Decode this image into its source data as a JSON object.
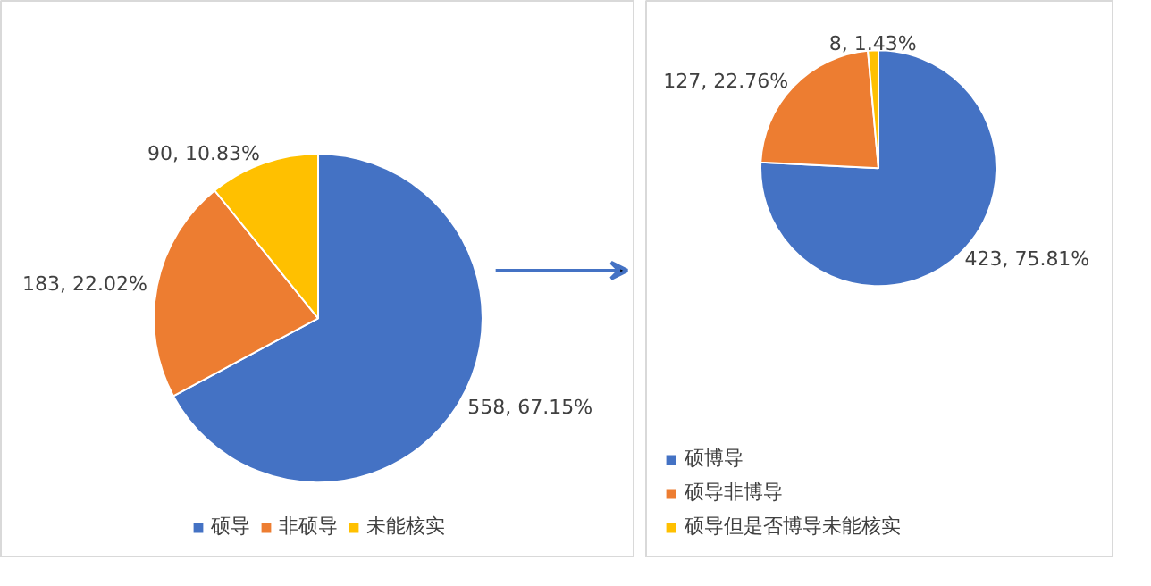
{
  "chart_data": [
    {
      "type": "pie",
      "categories": [
        "硕导",
        "非硕导",
        "未能核实"
      ],
      "values": [
        558,
        183,
        90
      ],
      "colors": [
        "#4472c4",
        "#ed7d31",
        "#ffc000"
      ],
      "value_labels": [
        "558, 67.15%",
        "183, 22.02%",
        "90, 10.83%"
      ],
      "legend": "bottom"
    },
    {
      "type": "pie",
      "categories": [
        "硕博导",
        "硕导非博导",
        "硕导但是否博导未能核实"
      ],
      "values": [
        423,
        127,
        8
      ],
      "colors": [
        "#4472c4",
        "#ed7d31",
        "#ffc000"
      ],
      "value_labels": [
        "423, 75.81%",
        "127, 22.76%",
        "8, 1.43%"
      ],
      "legend": "bottom left"
    }
  ]
}
